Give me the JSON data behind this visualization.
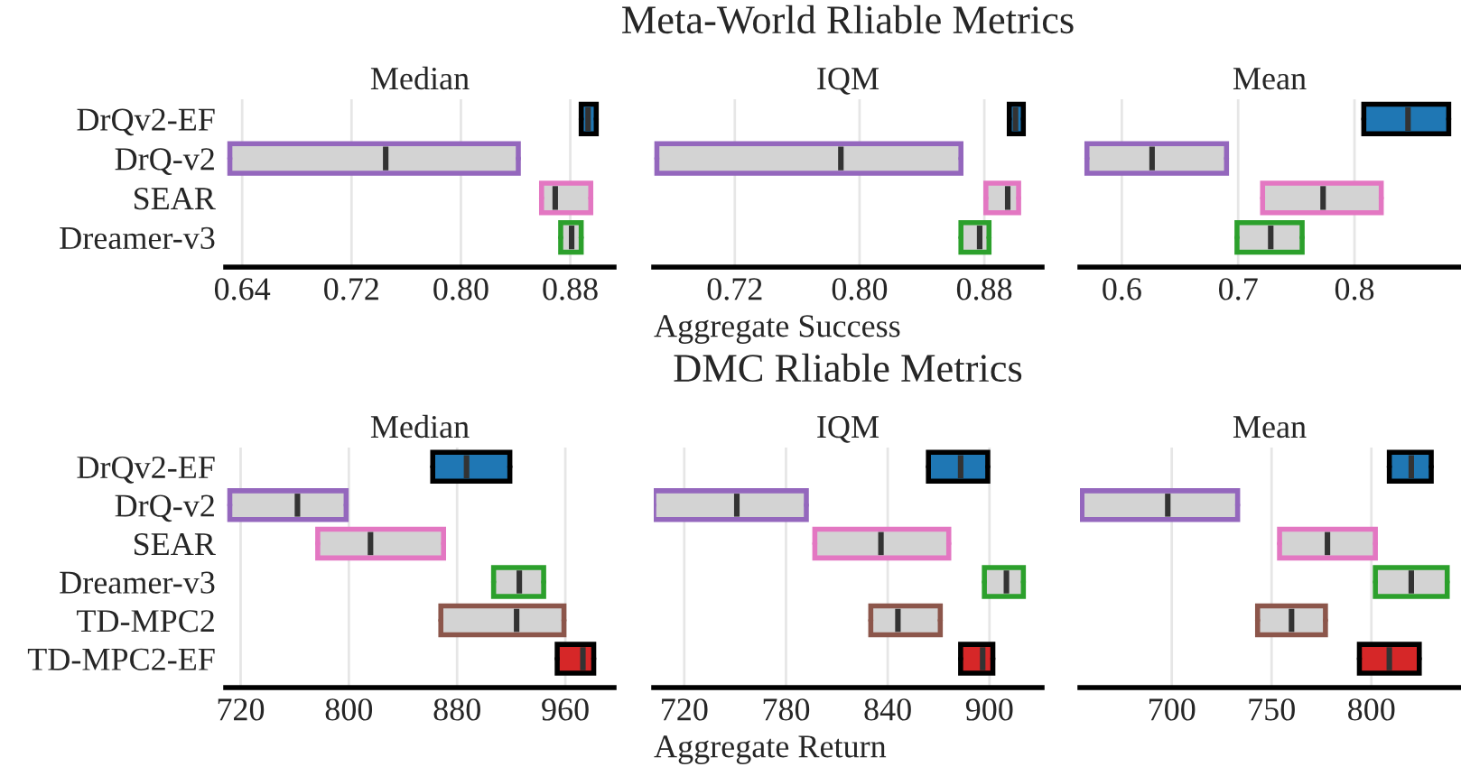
{
  "chart_data": [
    {
      "type": "box",
      "orientation": "horizontal",
      "subtitle": "Median",
      "categories": [
        "DrQv2-EF",
        "DrQ-v2",
        "SEAR",
        "Dreamer-v3"
      ],
      "xlim": [
        0.628,
        0.912
      ],
      "xticks": [
        0.64,
        0.72,
        {
          "value": 0.8,
          "label": "0.80"
        },
        0.88
      ],
      "grid": "x",
      "series": [
        {
          "color": "#d3d3d3",
          "colors": [
            null,
            "#9467bd",
            "#e377c2",
            "#2ca02c"
          ],
          "boxes": [
            null,
            {
              "low": 0.631,
              "q1": 0.631,
              "median": 0.745,
              "q3": 0.842,
              "high": 0.842
            },
            {
              "low": 0.859,
              "q1": 0.859,
              "median": 0.869,
              "q3": 0.895,
              "high": 0.895
            },
            {
              "low": 0.873,
              "q1": 0.873,
              "median": 0.881,
              "q3": 0.888,
              "high": 0.888
            }
          ]
        },
        {
          "colors": [
            "#1f77b4",
            null,
            null,
            null
          ],
          "boxes": [
            {
              "low": 0.888,
              "q1": 0.888,
              "median": 0.893,
              "q3": 0.899,
              "high": 0.899
            },
            null,
            null,
            null
          ]
        }
      ]
    },
    {
      "type": "box",
      "orientation": "horizontal",
      "title": "Meta-World Rliable Metrics",
      "subtitle": "IQM",
      "xlabel": "Aggregate Success",
      "categories": [
        null,
        null,
        null,
        null
      ],
      "xlim": [
        0.668,
        0.917
      ],
      "xticks": [
        0.72,
        {
          "value": 0.8,
          "label": "0.80"
        },
        0.88
      ],
      "grid": "x",
      "series": [
        {
          "color": "#d3d3d3",
          "colors": [
            null,
            "#9467bd",
            "#e377c2",
            "#2ca02c"
          ],
          "boxes": [
            null,
            {
              "low": 0.67,
              "q1": 0.67,
              "median": 0.788,
              "q3": 0.865,
              "high": 0.865
            },
            {
              "low": 0.881,
              "q1": 0.881,
              "median": 0.895,
              "q3": 0.902,
              "high": 0.902
            },
            {
              "low": 0.865,
              "q1": 0.865,
              "median": 0.877,
              "q3": 0.883,
              "high": 0.883
            }
          ]
        },
        {
          "colors": [
            "#1f77b4",
            null,
            null,
            null
          ],
          "boxes": [
            {
              "low": 0.896,
              "q1": 0.896,
              "median": 0.9,
              "q3": 0.905,
              "high": 0.905
            },
            null,
            null,
            null
          ]
        }
      ]
    },
    {
      "type": "box",
      "orientation": "horizontal",
      "subtitle": "Mean",
      "categories": [
        null,
        null,
        null,
        null
      ],
      "xlim": [
        0.564,
        0.89
      ],
      "xticks": [
        0.6,
        0.7,
        0.8
      ],
      "grid": "x",
      "series": [
        {
          "color": "#d3d3d3",
          "colors": [
            null,
            "#9467bd",
            "#e377c2",
            "#2ca02c"
          ],
          "boxes": [
            null,
            {
              "low": 0.57,
              "q1": 0.57,
              "median": 0.626,
              "q3": 0.69,
              "high": 0.69
            },
            {
              "low": 0.721,
              "q1": 0.721,
              "median": 0.773,
              "q3": 0.823,
              "high": 0.823
            },
            {
              "low": 0.699,
              "q1": 0.699,
              "median": 0.728,
              "q3": 0.755,
              "high": 0.755
            }
          ]
        },
        {
          "colors": [
            "#1f77b4",
            null,
            null,
            null
          ],
          "boxes": [
            {
              "low": 0.808,
              "q1": 0.808,
              "median": 0.846,
              "q3": 0.881,
              "high": 0.881
            },
            null,
            null,
            null
          ]
        }
      ]
    },
    {
      "type": "box",
      "orientation": "horizontal",
      "subtitle": "Median",
      "categories": [
        "DrQv2-EF",
        "DrQ-v2",
        "SEAR",
        "Dreamer-v3",
        "TD-MPC2",
        "TD-MPC2-EF"
      ],
      "xlim": [
        709,
        996
      ],
      "xticks": [
        720,
        800,
        880,
        960
      ],
      "grid": "x",
      "series": [
        {
          "color": "#d3d3d3",
          "colors": [
            null,
            "#9467bd",
            "#e377c2",
            "#2ca02c",
            "#8c564b",
            null
          ],
          "boxes": [
            null,
            {
              "low": 712,
              "q1": 712,
              "median": 762,
              "q3": 798,
              "high": 798
            },
            {
              "low": 777,
              "q1": 777,
              "median": 816,
              "q3": 870,
              "high": 870
            },
            {
              "low": 907,
              "q1": 907,
              "median": 926,
              "q3": 944,
              "high": 944
            },
            {
              "low": 868,
              "q1": 868,
              "median": 924,
              "q3": 959,
              "high": 959
            },
            null
          ]
        },
        {
          "colors": [
            "#1f77b4",
            null,
            null,
            null,
            null,
            "#d62728"
          ],
          "boxes": [
            {
              "low": 862,
              "q1": 862,
              "median": 887,
              "q3": 919,
              "high": 919
            },
            null,
            null,
            null,
            null,
            {
              "low": 954,
              "q1": 954,
              "median": 973,
              "q3": 981,
              "high": 981
            }
          ]
        }
      ]
    },
    {
      "type": "box",
      "orientation": "horizontal",
      "title": "DMC Rliable Metrics",
      "subtitle": "IQM",
      "xlabel": "Aggregate Return",
      "categories": [
        null,
        null,
        null,
        null,
        null,
        null
      ],
      "xlim": [
        702,
        931
      ],
      "xticks": [
        720,
        780,
        840,
        900
      ],
      "grid": "x",
      "series": [
        {
          "color": "#d3d3d3",
          "colors": [
            null,
            "#9467bd",
            "#e377c2",
            "#2ca02c",
            "#8c564b",
            null
          ],
          "boxes": [
            null,
            {
              "low": 702,
              "q1": 702,
              "median": 751,
              "q3": 792,
              "high": 792
            },
            {
              "low": 797,
              "q1": 797,
              "median": 836,
              "q3": 876,
              "high": 876
            },
            {
              "low": 897,
              "q1": 897,
              "median": 910,
              "q3": 920,
              "high": 920
            },
            {
              "low": 830,
              "q1": 830,
              "median": 846,
              "q3": 871,
              "high": 871
            },
            null
          ]
        },
        {
          "colors": [
            "#1f77b4",
            null,
            null,
            null,
            null,
            "#d62728"
          ],
          "boxes": [
            {
              "low": 864,
              "q1": 864,
              "median": 883,
              "q3": 899,
              "high": 899
            },
            null,
            null,
            null,
            null,
            {
              "low": 883,
              "q1": 883,
              "median": 896,
              "q3": 902,
              "high": 902
            }
          ]
        }
      ]
    },
    {
      "type": "box",
      "orientation": "horizontal",
      "subtitle": "Mean",
      "categories": [
        null,
        null,
        null,
        null,
        null,
        null
      ],
      "xlim": [
        654,
        844
      ],
      "xticks": [
        700,
        750,
        800
      ],
      "grid": "x",
      "series": [
        {
          "color": "#d3d3d3",
          "colors": [
            null,
            "#9467bd",
            "#e377c2",
            "#2ca02c",
            "#8c564b",
            null
          ],
          "boxes": [
            null,
            {
              "low": 655,
              "q1": 655,
              "median": 698,
              "q3": 733,
              "high": 733
            },
            {
              "low": 754,
              "q1": 754,
              "median": 778,
              "q3": 802,
              "high": 802
            },
            {
              "low": 802,
              "q1": 802,
              "median": 820,
              "q3": 838,
              "high": 838
            },
            {
              "low": 743,
              "q1": 743,
              "median": 760,
              "q3": 777,
              "high": 777
            },
            null
          ]
        },
        {
          "colors": [
            "#1f77b4",
            null,
            null,
            null,
            null,
            "#d62728"
          ],
          "boxes": [
            {
              "low": 809,
              "q1": 809,
              "median": 820,
              "q3": 830,
              "high": 830
            },
            null,
            null,
            null,
            null,
            {
              "low": 794,
              "q1": 794,
              "median": 809,
              "q3": 824,
              "high": 824
            }
          ]
        }
      ]
    }
  ]
}
